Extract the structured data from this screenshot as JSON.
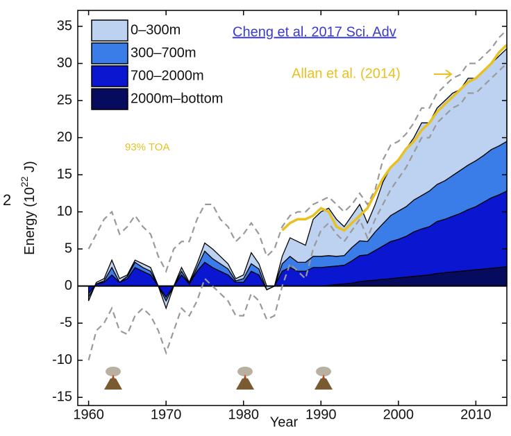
{
  "chart_data": {
    "type": "stacked-area",
    "y_label": {
      "prefix": "Energy (10",
      "exponent": "22",
      "suffix": " J)"
    },
    "x_label": "Year",
    "edge_text": "2",
    "annotations": {
      "source": "Cheng et al. 2017 Sci. Adv",
      "toa": "93% TOA",
      "allan": "Allan et al. (2014)"
    },
    "xlim": [
      1958.6,
      2014
    ],
    "ylim": [
      -16.1,
      37.15
    ],
    "xticks": [
      1960,
      1970,
      1980,
      1990,
      2000,
      2010
    ],
    "yticks": [
      -15,
      -10,
      -5,
      0,
      5,
      10,
      15,
      20,
      25,
      30,
      35
    ],
    "x": [
      1960,
      1961,
      1962,
      1963,
      1964,
      1965,
      1966,
      1967,
      1968,
      1969,
      1970,
      1971,
      1972,
      1973,
      1974,
      1975,
      1976,
      1977,
      1978,
      1979,
      1980,
      1981,
      1982,
      1983,
      1984,
      1985,
      1986,
      1987,
      1988,
      1989,
      1990,
      1991,
      1992,
      1993,
      1994,
      1995,
      1996,
      1997,
      1998,
      1999,
      2000,
      2001,
      2002,
      2003,
      2004,
      2005,
      2006,
      2007,
      2008,
      2009,
      2010,
      2011,
      2012,
      2013,
      2014
    ],
    "series": [
      {
        "name": "0–300m",
        "color": "#bcd2f0",
        "values": [
          -0.5,
          0.2,
          0.3,
          1,
          0.5,
          0.2,
          0.3,
          0.5,
          0.5,
          0,
          -1,
          0,
          0.5,
          0.2,
          0.5,
          1.1,
          1.3,
          1,
          0.7,
          0.3,
          0.5,
          1.5,
          0.7,
          0.5,
          0,
          1,
          2.5,
          2.8,
          2.3,
          5,
          6,
          6.4,
          5,
          3.9,
          4.3,
          4.9,
          2.5,
          3.7,
          5.6,
          6.5,
          6.9,
          7.8,
          8.4,
          9.8,
          9.2,
          10.3,
          10.8,
          11.1,
          10.9,
          11.7,
          11.1,
          11.4,
          11.6,
          12.1,
          12.5
        ]
      },
      {
        "name": "300–700m",
        "color": "#3b7de8",
        "values": [
          -0.5,
          0,
          0.2,
          1,
          0,
          0.3,
          0.7,
          0.5,
          0.5,
          0,
          -0.5,
          0,
          0.5,
          0,
          0.5,
          1.5,
          1.2,
          1,
          0.8,
          0.2,
          0.5,
          1,
          0.8,
          0,
          0,
          1,
          1.5,
          1.2,
          1.2,
          1.5,
          1.5,
          1.5,
          1.3,
          1.3,
          1.8,
          2,
          1.8,
          2.5,
          3,
          3.5,
          3.8,
          4,
          4.3,
          4.5,
          4.8,
          5,
          5.2,
          5.5,
          5.8,
          6,
          6.2,
          6.3,
          6.5,
          6.6,
          6.7
        ]
      },
      {
        "name": "700–2000m",
        "color": "#0a16d0",
        "values": [
          -1,
          0.3,
          0.5,
          1.5,
          0.5,
          1,
          2.5,
          2,
          1.5,
          0,
          -1.5,
          0,
          1.5,
          0.3,
          2,
          3.2,
          2.5,
          2,
          1.5,
          0.5,
          0.5,
          2,
          1.5,
          -0.5,
          0,
          2,
          2.5,
          2,
          2,
          2.5,
          2.5,
          2.5,
          2.5,
          2.5,
          3,
          3.5,
          3.5,
          4,
          4.5,
          5,
          5.2,
          5.5,
          6,
          6.3,
          6.5,
          7,
          7.2,
          7.5,
          7.8,
          8.2,
          8.5,
          9,
          9.5,
          9.8,
          10.2
        ]
      },
      {
        "name": "2000m–bottom",
        "color": "#060b5e",
        "values": [
          0,
          0,
          0,
          0,
          0,
          0,
          0,
          0,
          0,
          0,
          0,
          0,
          0,
          0,
          0,
          0,
          0,
          0,
          0,
          0,
          0,
          0,
          0,
          0,
          0,
          0,
          0,
          0,
          0,
          0,
          0,
          0.1,
          0.2,
          0.3,
          0.4,
          0.6,
          0.7,
          0.8,
          0.9,
          1,
          1.1,
          1.2,
          1.3,
          1.4,
          1.5,
          1.7,
          1.8,
          1.9,
          2,
          2.1,
          2.2,
          2.3,
          2.4,
          2.5,
          2.6
        ]
      }
    ],
    "bounds": {
      "color": "#999999",
      "upper": [
        5,
        7,
        9,
        10,
        7,
        8,
        9.5,
        8,
        7,
        4,
        2,
        5,
        6,
        6,
        9,
        11,
        11,
        9,
        8,
        6,
        7,
        8.5,
        7,
        4,
        5,
        8,
        9.5,
        10,
        10,
        11,
        11.5,
        12,
        11,
        10,
        11,
        12.5,
        11,
        13,
        17,
        19,
        19.5,
        20.5,
        22,
        24,
        24,
        26,
        27,
        28,
        28.5,
        30,
        30,
        31,
        32,
        33.5,
        34.5
      ],
      "lower": [
        -10,
        -6,
        -5,
        -3,
        -6,
        -6.5,
        -4,
        -3,
        -4,
        -6,
        -9,
        -6,
        -3,
        -4,
        -2,
        1,
        0,
        -1,
        -2,
        -4,
        -4,
        -1,
        -2,
        -4.5,
        -4,
        0,
        3,
        2,
        1,
        5,
        7.5,
        8.5,
        7,
        6,
        7.5,
        9,
        6.5,
        9,
        11,
        13,
        14.5,
        16,
        18,
        20,
        20,
        22,
        23,
        24,
        24.5,
        26,
        26,
        27,
        28,
        29,
        30
      ]
    },
    "allan": {
      "color": "#e8c020",
      "values": [
        null,
        null,
        null,
        null,
        null,
        null,
        null,
        null,
        null,
        null,
        null,
        null,
        null,
        null,
        null,
        null,
        null,
        null,
        null,
        null,
        null,
        null,
        null,
        null,
        null,
        7.5,
        8.5,
        9,
        9,
        9.5,
        10.5,
        10,
        8,
        7.5,
        8.5,
        9.5,
        10.5,
        12.5,
        14.5,
        16,
        17,
        18.5,
        19.5,
        21,
        22,
        23.5,
        24.5,
        25.5,
        26.5,
        27.5,
        28,
        29,
        30,
        31.5,
        32.5
      ]
    }
  }
}
